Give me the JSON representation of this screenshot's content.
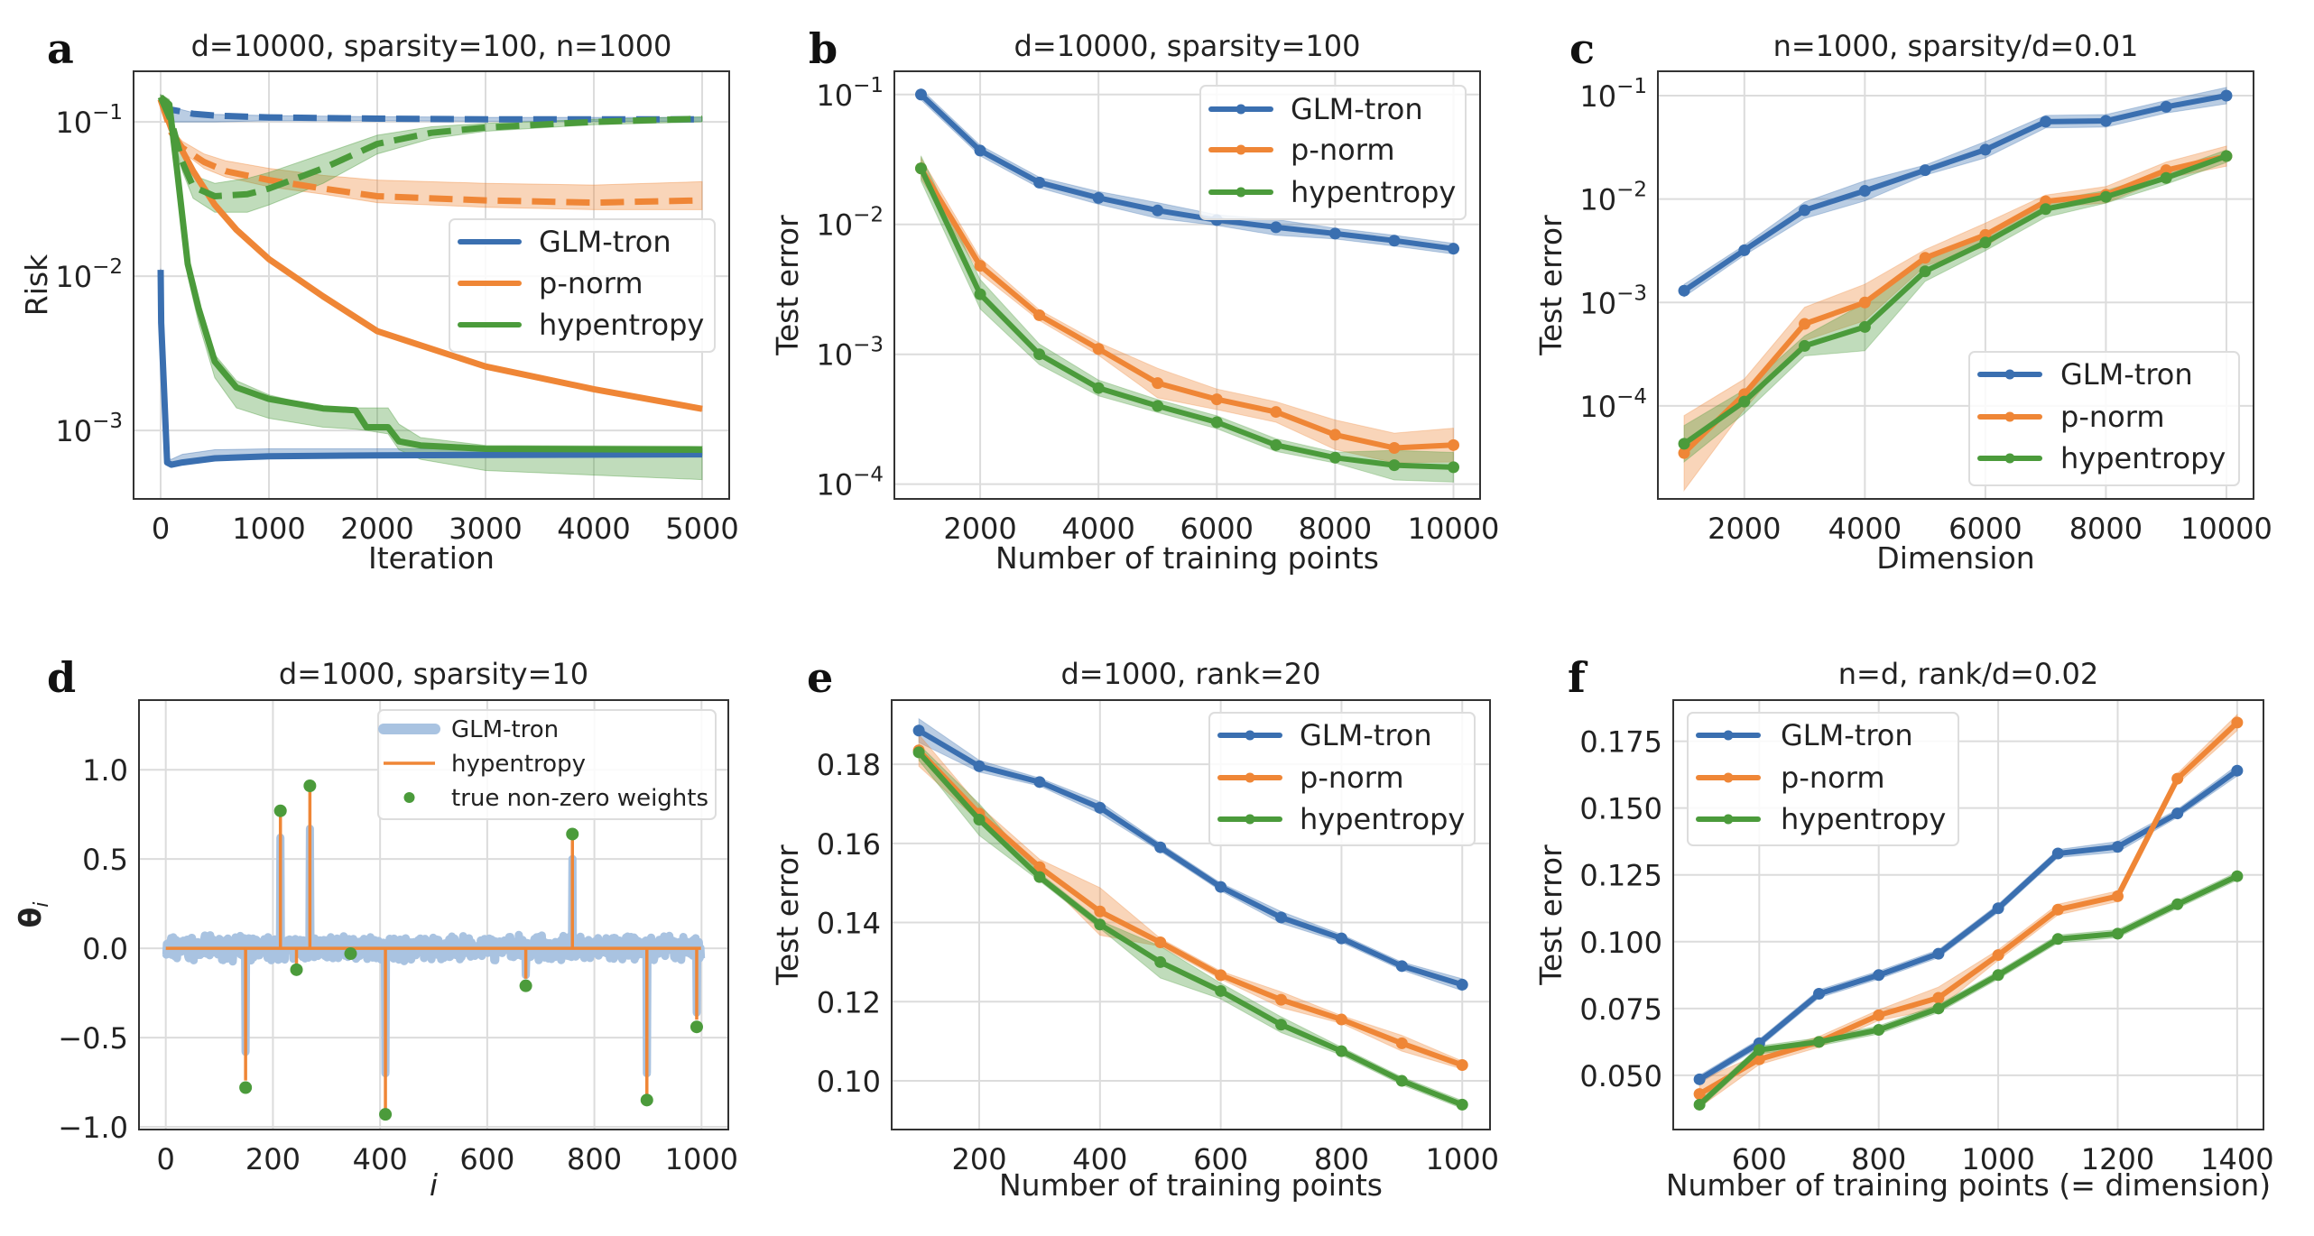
{
  "colors": {
    "GLM-tron": "#3a6fb0",
    "p-norm": "#ef8636",
    "hypentropy": "#4b9b3b",
    "glm_light": "#a9c3e1",
    "grid": "#dcdcdc"
  },
  "chart_data": [
    {
      "panel": "a",
      "type": "line",
      "title": "d=10000, sparsity=100, n=1000",
      "xlabel": "Iteration",
      "ylabel": "Risk",
      "yscale": "log",
      "grid": true,
      "xlim": [
        -250,
        5250
      ],
      "ylim": [
        0.00036,
        0.213
      ],
      "xticks": [
        0,
        1000,
        2000,
        3000,
        4000,
        5000
      ],
      "yticks": [
        0.1,
        0.01,
        0.001
      ],
      "yticklabels": [
        {
          "base": "10",
          "exp": "−1"
        },
        {
          "base": "10",
          "exp": "−2"
        },
        {
          "base": "10",
          "exp": "−3"
        }
      ],
      "legend": {
        "position": "center-right",
        "entries": [
          "GLM-tron",
          "p-norm",
          "hypentropy"
        ],
        "markers": false
      },
      "series": [
        {
          "name": "GLM-tron",
          "linestyle": "solid",
          "x": [
            0,
            5,
            60,
            100,
            200,
            500,
            1000,
            2000,
            5000
          ],
          "y": [
            0.011,
            0.005,
            0.00062,
            0.0006,
            0.00062,
            0.00066,
            0.00068,
            0.00069,
            0.0007
          ],
          "lo": [
            0.0105,
            0.0048,
            0.0006,
            0.00058,
            0.0006,
            0.00065,
            0.00067,
            0.00068,
            0.00069
          ],
          "hi": [
            0.0112,
            0.0052,
            0.00066,
            0.00065,
            0.0007,
            0.00075,
            0.00076,
            0.00076,
            0.00076
          ]
        },
        {
          "name": "GLM-tron",
          "linestyle": "dashed",
          "x": [
            0,
            100,
            300,
            500,
            1000,
            2000,
            3000,
            5000
          ],
          "y": [
            0.14,
            0.12,
            0.113,
            0.11,
            0.107,
            0.105,
            0.104,
            0.104
          ],
          "lo": [
            0.13,
            0.1,
            0.1,
            0.1,
            0.102,
            0.102,
            0.101,
            0.101
          ],
          "hi": [
            0.15,
            0.125,
            0.115,
            0.112,
            0.11,
            0.108,
            0.107,
            0.107
          ]
        },
        {
          "name": "p-norm",
          "linestyle": "solid",
          "x": [
            0,
            100,
            200,
            300,
            500,
            700,
            1000,
            1500,
            2000,
            3000,
            4000,
            5000
          ],
          "y": [
            0.14,
            0.09,
            0.065,
            0.048,
            0.029,
            0.02,
            0.0129,
            0.0074,
            0.0044,
            0.0026,
            0.00185,
            0.00138
          ],
          "lo": [
            0.135,
            0.087,
            0.063,
            0.046,
            0.028,
            0.0194,
            0.0125,
            0.0072,
            0.0043,
            0.00252,
            0.0018,
            0.00134
          ],
          "hi": [
            0.145,
            0.093,
            0.067,
            0.05,
            0.03,
            0.0206,
            0.0133,
            0.0076,
            0.0045,
            0.00268,
            0.0019,
            0.00142
          ]
        },
        {
          "name": "p-norm",
          "linestyle": "dashed",
          "x": [
            0,
            100,
            200,
            400,
            600,
            1000,
            1500,
            2000,
            3000,
            4000,
            5000
          ],
          "y": [
            0.14,
            0.085,
            0.068,
            0.055,
            0.048,
            0.042,
            0.037,
            0.033,
            0.031,
            0.03,
            0.031
          ],
          "lo": [
            0.13,
            0.08,
            0.064,
            0.05,
            0.044,
            0.038,
            0.034,
            0.03,
            0.028,
            0.027,
            0.027
          ],
          "hi": [
            0.15,
            0.09,
            0.075,
            0.062,
            0.056,
            0.05,
            0.045,
            0.042,
            0.04,
            0.039,
            0.041
          ]
        },
        {
          "name": "hypentropy",
          "linestyle": "solid",
          "x": [
            0,
            80,
            150,
            250,
            350,
            500,
            700,
            1000,
            1500,
            1800,
            1900,
            2100,
            2200,
            2400,
            3000,
            5000
          ],
          "y": [
            0.145,
            0.13,
            0.05,
            0.012,
            0.0062,
            0.0028,
            0.0019,
            0.0016,
            0.00139,
            0.00135,
            0.00105,
            0.00105,
            0.00085,
            0.0008,
            0.00076,
            0.00075
          ],
          "lo": [
            0.14,
            0.12,
            0.045,
            0.01,
            0.005,
            0.0022,
            0.0014,
            0.0012,
            0.00105,
            0.00102,
            0.001,
            0.00095,
            0.00075,
            0.00065,
            0.00055,
            0.00048
          ],
          "hi": [
            0.15,
            0.14,
            0.055,
            0.014,
            0.007,
            0.0031,
            0.0021,
            0.0017,
            0.0014,
            0.0014,
            0.0014,
            0.0014,
            0.0011,
            0.0009,
            0.0008,
            0.00079
          ]
        },
        {
          "name": "hypentropy",
          "linestyle": "dashed",
          "x": [
            0,
            100,
            200,
            300,
            500,
            800,
            1000,
            1500,
            2000,
            2500,
            3000,
            4000,
            5000
          ],
          "y": [
            0.145,
            0.1,
            0.055,
            0.038,
            0.033,
            0.034,
            0.037,
            0.05,
            0.072,
            0.085,
            0.092,
            0.1,
            0.105
          ],
          "lo": [
            0.14,
            0.09,
            0.048,
            0.032,
            0.026,
            0.026,
            0.029,
            0.04,
            0.062,
            0.078,
            0.087,
            0.096,
            0.1
          ],
          "hi": [
            0.15,
            0.11,
            0.062,
            0.045,
            0.04,
            0.043,
            0.047,
            0.062,
            0.082,
            0.093,
            0.098,
            0.104,
            0.108
          ]
        }
      ]
    },
    {
      "panel": "b",
      "type": "line",
      "title": "d=10000, sparsity=100",
      "xlabel": "Number of training points",
      "ylabel": "Test error",
      "yscale": "log",
      "grid": true,
      "xlim": [
        550,
        10450
      ],
      "ylim": [
        7.7e-05,
        0.151
      ],
      "xticks": [
        2000,
        4000,
        6000,
        8000,
        10000
      ],
      "yticks": [
        0.1,
        0.01,
        0.001,
        0.0001
      ],
      "yticklabels": [
        {
          "base": "10",
          "exp": "−1"
        },
        {
          "base": "10",
          "exp": "−2"
        },
        {
          "base": "10",
          "exp": "−3"
        },
        {
          "base": "10",
          "exp": "−4"
        }
      ],
      "legend": {
        "position": "top-right",
        "entries": [
          "GLM-tron",
          "p-norm",
          "hypentropy"
        ],
        "markers": true
      },
      "x": [
        1000,
        2000,
        3000,
        4000,
        5000,
        6000,
        7000,
        8000,
        9000,
        10000
      ],
      "series": [
        {
          "name": "GLM-tron",
          "y": [
            0.1,
            0.037,
            0.021,
            0.016,
            0.0128,
            0.0108,
            0.0095,
            0.0085,
            0.0075,
            0.0065
          ],
          "spread": [
            1.1,
            1.1,
            1.1,
            1.12,
            1.15,
            1.1,
            1.15,
            1.1,
            1.1,
            1.1
          ]
        },
        {
          "name": "p-norm",
          "y": [
            0.027,
            0.0048,
            0.002,
            0.0011,
            0.0006,
            0.00045,
            0.00036,
            0.00024,
            0.00019,
            0.0002
          ],
          "spread": [
            1.2,
            1.15,
            1.1,
            1.12,
            1.3,
            1.2,
            1.2,
            1.3,
            1.3,
            1.35
          ]
        },
        {
          "name": "hypentropy",
          "y": [
            0.027,
            0.0029,
            0.001,
            0.00055,
            0.0004,
            0.0003,
            0.0002,
            0.00016,
            0.00014,
            0.000135
          ],
          "spread": [
            1.25,
            1.3,
            1.2,
            1.15,
            1.12,
            1.12,
            1.12,
            1.1,
            1.3,
            1.3
          ]
        }
      ]
    },
    {
      "panel": "c",
      "type": "line",
      "title": "n=1000, sparsity/d=0.01",
      "xlabel": "Dimension",
      "ylabel": "Test error",
      "yscale": "log",
      "grid": true,
      "xlim": [
        565,
        10450
      ],
      "ylim": [
        1.26e-05,
        0.172
      ],
      "xticks": [
        2000,
        4000,
        6000,
        8000,
        10000
      ],
      "yticks": [
        0.1,
        0.01,
        0.001,
        0.0001
      ],
      "yticklabels": [
        {
          "base": "10",
          "exp": "−1"
        },
        {
          "base": "10",
          "exp": "−2"
        },
        {
          "base": "10",
          "exp": "−3"
        },
        {
          "base": "10",
          "exp": "−4"
        }
      ],
      "legend": {
        "position": "lower-right",
        "entries": [
          "GLM-tron",
          "p-norm",
          "hypentropy"
        ],
        "markers": true
      },
      "x": [
        1000,
        2000,
        3000,
        4000,
        5000,
        6000,
        7000,
        8000,
        9000,
        10000
      ],
      "series": [
        {
          "name": "GLM-tron",
          "y": [
            0.0013,
            0.0032,
            0.0078,
            0.012,
            0.019,
            0.03,
            0.056,
            0.057,
            0.078,
            0.1
          ],
          "spread": [
            1.15,
            1.12,
            1.2,
            1.25,
            1.12,
            1.2,
            1.15,
            1.15,
            1.15,
            1.2
          ]
        },
        {
          "name": "p-norm",
          "y": [
            3.5e-05,
            0.00013,
            0.00062,
            0.001,
            0.0027,
            0.0045,
            0.0095,
            0.011,
            0.019,
            0.026
          ],
          "spread": [
            2.3,
            1.4,
            1.45,
            1.5,
            1.2,
            1.3,
            1.15,
            1.2,
            1.2,
            1.25
          ]
        },
        {
          "name": "hypentropy",
          "y": [
            4.3e-05,
            0.00011,
            0.00038,
            0.00058,
            0.002,
            0.0038,
            0.008,
            0.0105,
            0.016,
            0.026
          ],
          "spread": [
            1.5,
            1.3,
            1.25,
            1.7,
            1.25,
            1.2,
            1.2,
            1.15,
            1.15,
            1.15
          ]
        }
      ]
    },
    {
      "panel": "d",
      "type": "line",
      "title": "d=1000, sparsity=10",
      "xlabel": "i",
      "ylabel": "θ",
      "ylabel_sub": "i",
      "yscale": "linear",
      "grid": true,
      "xlim": [
        -50,
        1050
      ],
      "ylim": [
        -1.015,
        1.39
      ],
      "xticks": [
        0,
        200,
        400,
        600,
        800,
        1000
      ],
      "yticks": [
        -1.0,
        -0.5,
        0.0,
        0.5,
        1.0
      ],
      "yticklabels": [
        "−1.0",
        "−0.5",
        "0.0",
        "0.5",
        "1.0"
      ],
      "legend": {
        "position": "top-right",
        "entries": [
          "GLM-tron",
          "hypentropy",
          "true non-zero weights"
        ]
      },
      "d": 1000,
      "true_weights": {
        "name": "true non-zero weights",
        "i": [
          149,
          214,
          244,
          269,
          345,
          410,
          672,
          759,
          898,
          991
        ],
        "value": [
          -0.78,
          0.77,
          -0.12,
          0.91,
          -0.03,
          -0.93,
          -0.21,
          0.64,
          -0.85,
          -0.44
        ]
      },
      "hypentropy": {
        "name": "hypentropy",
        "i": [
          149,
          214,
          244,
          269,
          410,
          672,
          759,
          898,
          991
        ],
        "value": [
          -0.74,
          0.75,
          -0.1,
          0.9,
          -0.93,
          -0.17,
          0.63,
          -0.87,
          -0.4
        ]
      },
      "glm_tron": {
        "name": "GLM-tron",
        "i": [
          149,
          214,
          269,
          410,
          672,
          759,
          898,
          991
        ],
        "value": [
          -0.58,
          0.62,
          0.67,
          -0.7,
          -0.15,
          0.5,
          -0.7,
          -0.36
        ]
      }
    },
    {
      "panel": "e",
      "type": "line",
      "title": "d=1000, rank=20",
      "xlabel": "Number of training points",
      "ylabel": "Test error",
      "yscale": "linear",
      "grid": true,
      "xlim": [
        55,
        1046
      ],
      "ylim": [
        0.0877,
        0.1962
      ],
      "xticks": [
        200,
        400,
        600,
        800,
        1000
      ],
      "yticks": [
        0.1,
        0.12,
        0.14,
        0.16,
        0.18
      ],
      "yticklabels": [
        "0.10",
        "0.12",
        "0.14",
        "0.16",
        "0.18"
      ],
      "legend": {
        "position": "top-right",
        "entries": [
          "GLM-tron",
          "p-norm",
          "hypentropy"
        ],
        "markers": true
      },
      "x": [
        100,
        200,
        300,
        400,
        500,
        600,
        700,
        800,
        900,
        1000
      ],
      "series": [
        {
          "name": "GLM-tron",
          "y": [
            0.1885,
            0.1795,
            0.1755,
            0.169,
            0.159,
            0.149,
            0.1413,
            0.136,
            0.129,
            0.1243
          ],
          "spread": [
            0.003,
            0.0015,
            0.001,
            0.0015,
            0.001,
            0.001,
            0.0015,
            0.001,
            0.001,
            0.0015
          ]
        },
        {
          "name": "p-norm",
          "y": [
            0.1835,
            0.1675,
            0.154,
            0.1428,
            0.135,
            0.1267,
            0.1205,
            0.1155,
            0.1095,
            0.104
          ],
          "spread": [
            0.004,
            0.002,
            0.002,
            0.006,
            0.001,
            0.001,
            0.002,
            0.001,
            0.002,
            0.001
          ]
        },
        {
          "name": "hypentropy",
          "y": [
            0.183,
            0.166,
            0.1515,
            0.1395,
            0.13,
            0.1227,
            0.1142,
            0.1075,
            0.1,
            0.094
          ],
          "spread": [
            0.002,
            0.004,
            0.001,
            0.001,
            0.004,
            0.002,
            0.002,
            0.001,
            0.001,
            0.001
          ]
        }
      ]
    },
    {
      "panel": "f",
      "type": "line",
      "title": "n=d, rank/d=0.02",
      "xlabel": "Number of training points (= dimension)",
      "ylabel": "Test error",
      "yscale": "linear",
      "grid": true,
      "xlim": [
        456,
        1444
      ],
      "ylim": [
        0.0297,
        0.1904
      ],
      "xticks": [
        600,
        800,
        1000,
        1200,
        1400
      ],
      "yticks": [
        0.05,
        0.075,
        0.1,
        0.125,
        0.15,
        0.175
      ],
      "yticklabels": [
        "0.050",
        "0.075",
        "0.100",
        "0.125",
        "0.150",
        "0.175"
      ],
      "legend": {
        "position": "top-left",
        "entries": [
          "GLM-tron",
          "p-norm",
          "hypentropy"
        ],
        "markers": true
      },
      "x": [
        500,
        600,
        700,
        800,
        900,
        1000,
        1100,
        1200,
        1300,
        1400
      ],
      "series": [
        {
          "name": "GLM-tron",
          "y": [
            0.0485,
            0.062,
            0.0805,
            0.0875,
            0.0955,
            0.1125,
            0.133,
            0.1355,
            0.148,
            0.164
          ],
          "spread": [
            0.0015,
            0.0015,
            0.0015,
            0.0015,
            0.0015,
            0.0015,
            0.0015,
            0.002,
            0.0015,
            0.002
          ]
        },
        {
          "name": "p-norm",
          "y": [
            0.043,
            0.056,
            0.0625,
            0.0725,
            0.079,
            0.095,
            0.112,
            0.117,
            0.161,
            0.182
          ],
          "spread": [
            0.005,
            0.002,
            0.002,
            0.002,
            0.004,
            0.002,
            0.002,
            0.002,
            0.002,
            0.003
          ]
        },
        {
          "name": "hypentropy",
          "y": [
            0.039,
            0.0595,
            0.0625,
            0.067,
            0.075,
            0.0875,
            0.101,
            0.103,
            0.114,
            0.1245
          ],
          "spread": [
            0.0015,
            0.0015,
            0.0015,
            0.0015,
            0.0015,
            0.0015,
            0.0015,
            0.0015,
            0.0015,
            0.0015
          ]
        }
      ]
    }
  ]
}
